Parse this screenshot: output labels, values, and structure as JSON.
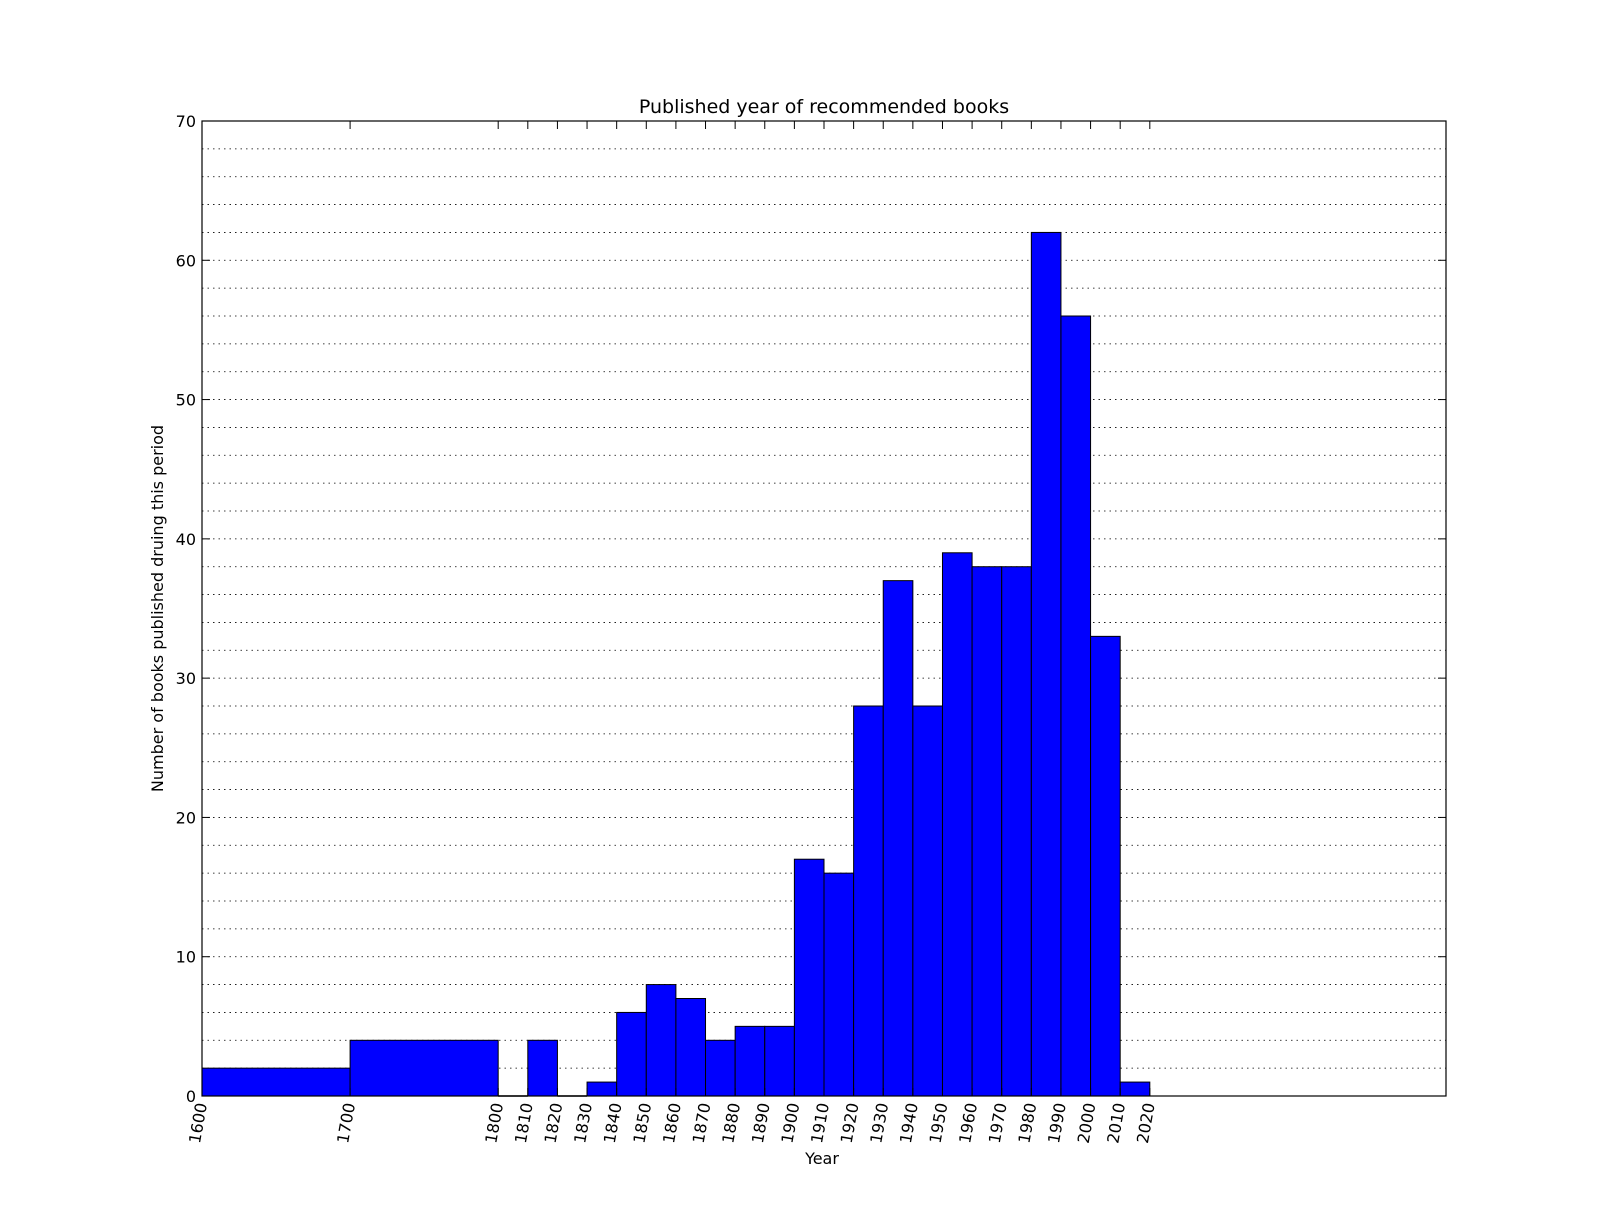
{
  "chart_data": {
    "type": "bar",
    "title": "Published year of recommended books",
    "xlabel": "Year",
    "ylabel": "Number of books published druing this period",
    "xlim": [
      0,
      42
    ],
    "ylim": [
      0,
      70
    ],
    "bin_edges": [
      1600,
      1700,
      1800,
      1810,
      1820,
      1830,
      1840,
      1850,
      1860,
      1870,
      1880,
      1890,
      1900,
      1910,
      1920,
      1930,
      1940,
      1950,
      1960,
      1970,
      1980,
      1990,
      2000,
      2010,
      2020
    ],
    "x_tick_labels": [
      "1600",
      "1700",
      "1800",
      "1810",
      "1820",
      "1830",
      "1840",
      "1850",
      "1860",
      "1870",
      "1880",
      "1890",
      "1900",
      "1910",
      "1920",
      "1930",
      "1940",
      "1950",
      "1960",
      "1970",
      "1980",
      "1990",
      "2000",
      "2010",
      "2020"
    ],
    "values": [
      2,
      4,
      0,
      4,
      0,
      1,
      6,
      8,
      7,
      4,
      5,
      5,
      17,
      16,
      28,
      37,
      28,
      39,
      38,
      38,
      62,
      56,
      33,
      1
    ],
    "y_ticks": [
      0,
      10,
      20,
      30,
      40,
      50,
      60,
      70
    ],
    "grid": "horizontal dotted",
    "bar_color": "#0000ff",
    "edge_color": "#000000"
  }
}
